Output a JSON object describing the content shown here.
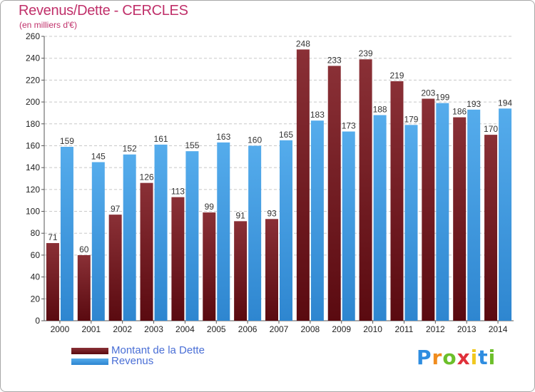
{
  "title": "Revenus/Dette - CERCLES",
  "subtitle": "(en milliers d'€)",
  "logo": {
    "letters": [
      "P",
      "r",
      "o",
      "x",
      "i",
      "t",
      "i"
    ],
    "colors": [
      "#2e8de0",
      "#f08c1e",
      "#6cbf2a",
      "#e0303a",
      "#f0c81e",
      "#2e8de0",
      "#6cbf2a"
    ]
  },
  "chart_data": {
    "type": "bar",
    "title": "Revenus/Dette - CERCLES",
    "ylabel": "(en milliers d'€)",
    "categories": [
      "2000",
      "2001",
      "2002",
      "2003",
      "2004",
      "2005",
      "2006",
      "2007",
      "2008",
      "2009",
      "2010",
      "2011",
      "2012",
      "2013",
      "2014"
    ],
    "series": [
      {
        "name": "Montant de la Dette",
        "color": "#7a1f24",
        "values": [
          71,
          60,
          97,
          126,
          113,
          99,
          91,
          93,
          248,
          233,
          239,
          219,
          203,
          186,
          170
        ]
      },
      {
        "name": "Revenus",
        "color": "#3f9fe6",
        "values": [
          159,
          145,
          152,
          161,
          155,
          163,
          160,
          165,
          183,
          173,
          188,
          179,
          199,
          193,
          194
        ]
      }
    ],
    "ylim": [
      0,
      260
    ],
    "yticks": [
      0,
      20,
      40,
      60,
      80,
      100,
      120,
      140,
      160,
      180,
      200,
      220,
      240,
      260
    ],
    "grid": true,
    "legend": "bottom-left"
  }
}
